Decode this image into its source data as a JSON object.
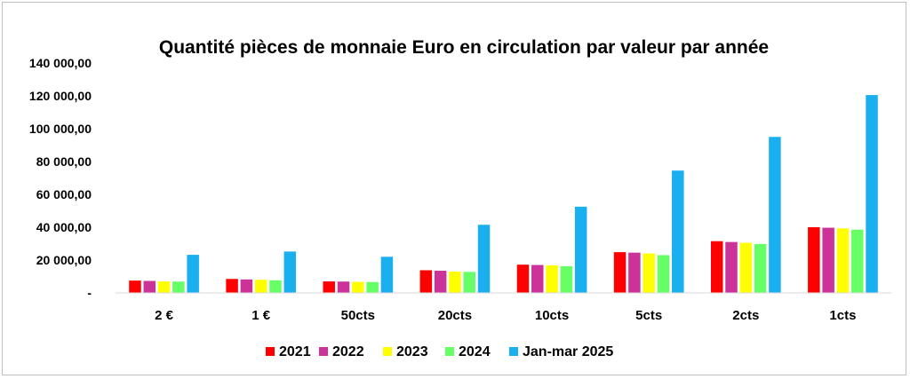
{
  "chart_data": {
    "type": "bar",
    "title": "Quantité pièces de monnaie Euro en circulation par valeur par année",
    "categories": [
      "2 €",
      "1 €",
      "50cts",
      "20cts",
      "10cts",
      "5cts",
      "2cts",
      "1cts"
    ],
    "series": [
      {
        "name": "2021",
        "color": "#ff0000",
        "values": [
          7500,
          8500,
          7000,
          13800,
          17200,
          24800,
          31500,
          40000
        ]
      },
      {
        "name": "2022",
        "color": "#cc3399",
        "values": [
          7300,
          8200,
          6900,
          13500,
          17000,
          24500,
          31000,
          39700
        ]
      },
      {
        "name": "2023",
        "color": "#ffff00",
        "values": [
          7000,
          8000,
          6700,
          13000,
          16800,
          24000,
          30500,
          39300
        ]
      },
      {
        "name": "2024",
        "color": "#66ff66",
        "values": [
          6900,
          7700,
          6600,
          12800,
          16300,
          23000,
          29800,
          38500
        ]
      },
      {
        "name": "Jan-mar 2025",
        "color": "#1ab0f0",
        "values": [
          23200,
          25200,
          22000,
          41500,
          52500,
          74500,
          95000,
          120500
        ]
      }
    ],
    "yticks": [
      "-",
      "20 000,00",
      "40 000,00",
      "60 000,00",
      "80 000,00",
      "100 000,00",
      "120 000,00",
      "140 000,00"
    ],
    "ylim": [
      0,
      140000
    ],
    "grid": false,
    "legend_position": "bottom"
  }
}
